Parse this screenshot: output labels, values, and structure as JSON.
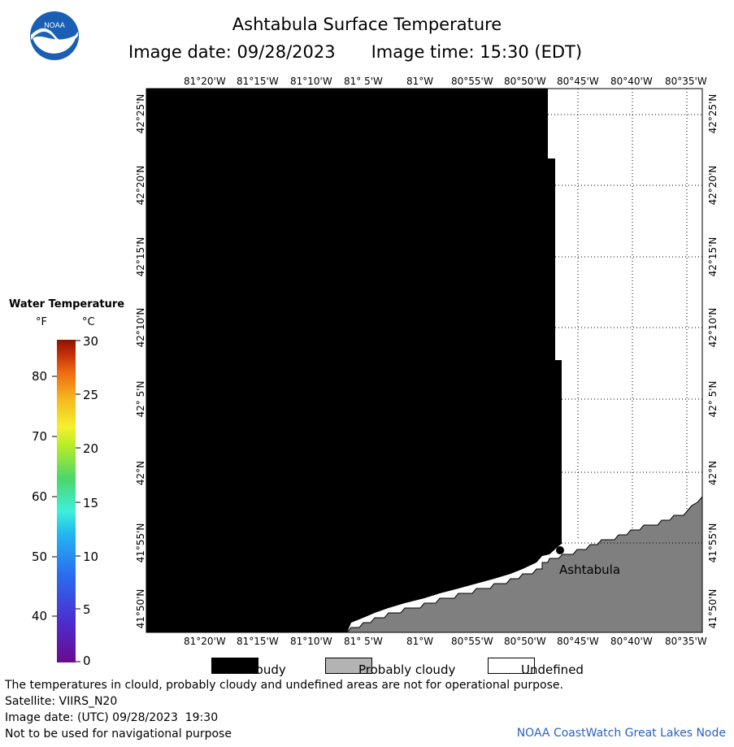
{
  "header": {
    "title": "Ashtabula Surface Temperature",
    "image_date_label": "Image date: 09/28/2023",
    "image_time_label": "Image time: 15:30 (EDT)"
  },
  "logo": {
    "text": "NOAA"
  },
  "map": {
    "lon_labels": [
      "81°20'W",
      "81°15'W",
      "81°10'W",
      "81° 5'W",
      "81°W",
      "80°55'W",
      "80°50'W",
      "80°45'W",
      "80°40'W",
      "80°35'W"
    ],
    "lat_labels": [
      "42°25'N",
      "42°20'N",
      "42°15'N",
      "42°10'N",
      "42° 5'N",
      "42°N",
      "41°55'N",
      "41°50'N"
    ],
    "city_label": "Ashtabula",
    "colors": {
      "cloudy": "#000000",
      "probably_cloudy": "#7f7f7f",
      "undefined": "#ffffff"
    }
  },
  "legend": {
    "title": "Water Temperature",
    "unit_f": "°F",
    "unit_c": "°C",
    "fahrenheit_ticks": [
      "80",
      "70",
      "60",
      "50",
      "40"
    ],
    "celsius_ticks": [
      "30",
      "25",
      "20",
      "15",
      "10",
      "5",
      "0"
    ]
  },
  "key": {
    "cloudy": "Cloudy",
    "probably_cloudy": "Probably cloudy",
    "undefined": "Undefined"
  },
  "footer": {
    "disclaimer": "The temperatures in clould, probably cloudy and undefined areas are not for operational purpose.",
    "satellite": "Satellite: VIIRS_N20",
    "utc_date": "Image date: (UTC) 09/28/2023  19:30",
    "navigation": "Not to be used for navigational purpose",
    "node": "NOAA CoastWatch Great Lakes Node"
  }
}
